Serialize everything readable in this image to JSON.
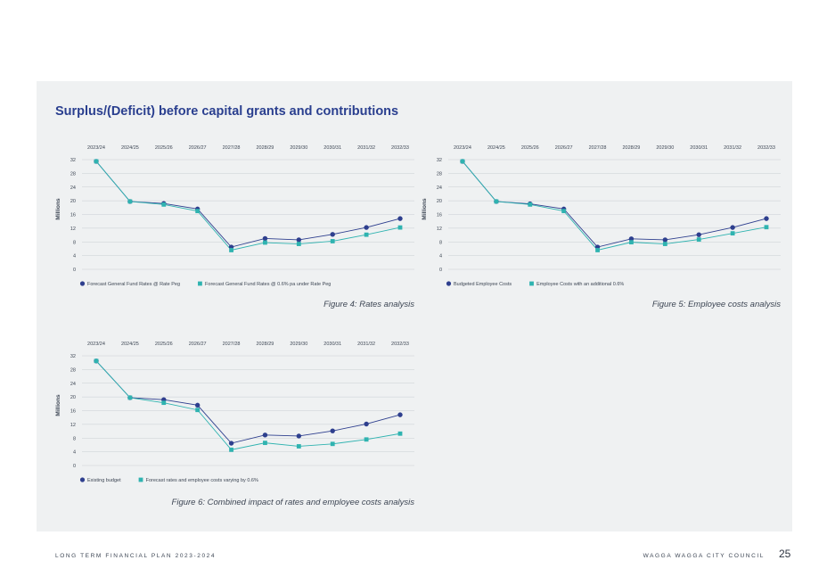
{
  "page": {
    "title": "Surplus/(Deficit) before capital grants and contributions",
    "footer_left": "LONG TERM FINANCIAL PLAN 2023-2024",
    "footer_right": "WAGGA WAGGA CITY COUNCIL",
    "page_number": "25"
  },
  "colors": {
    "series_a": "#2e3f8e",
    "series_b": "#2fb3b0",
    "grid": "#c9ced3",
    "text": "#3d4654"
  },
  "chart_data": [
    {
      "type": "line",
      "caption": "Figure 4: Rates analysis",
      "ylabel": "Millions",
      "xlabel": "",
      "x": [
        "2023/24",
        "2024/25",
        "2025/26",
        "2026/27",
        "2027/28",
        "2028/29",
        "2029/30",
        "2030/31",
        "2031/32",
        "2032/33"
      ],
      "y_ticks": [
        "0",
        "4",
        "8",
        "12",
        "16",
        "20",
        "24",
        "28",
        "32"
      ],
      "ylim": [
        0,
        32
      ],
      "grid": true,
      "legend_position": "bottom-left",
      "x_axis_position": "top",
      "series": [
        {
          "name": "Forecast General Fund Rates @ Rate Peg",
          "marker": "circle",
          "color": "#2e3f8e",
          "values": [
            31.5,
            19.8,
            19.2,
            17.6,
            6.5,
            9.0,
            8.6,
            10.2,
            12.2,
            14.8
          ]
        },
        {
          "name": "Forecast General Fund Rates @ 0.6% pa under Rate Peg",
          "marker": "square",
          "color": "#2fb3b0",
          "values": [
            31.5,
            19.8,
            18.9,
            17.0,
            5.6,
            7.8,
            7.4,
            8.2,
            10.1,
            12.2
          ]
        }
      ]
    },
    {
      "type": "line",
      "caption": "Figure 5: Employee costs analysis",
      "ylabel": "Millions",
      "xlabel": "",
      "x": [
        "2023/24",
        "2024/25",
        "2025/26",
        "2026/27",
        "2027/28",
        "2028/29",
        "2029/30",
        "2030/31",
        "2031/32",
        "2032/33"
      ],
      "y_ticks": [
        "0",
        "4",
        "8",
        "12",
        "16",
        "20",
        "24",
        "28",
        "32"
      ],
      "ylim": [
        0,
        32
      ],
      "grid": true,
      "legend_position": "bottom-left",
      "x_axis_position": "top",
      "series": [
        {
          "name": "Budgeted Employee Costs",
          "marker": "circle",
          "color": "#2e3f8e",
          "values": [
            31.5,
            19.8,
            19.1,
            17.6,
            6.5,
            8.9,
            8.6,
            10.1,
            12.2,
            14.8
          ]
        },
        {
          "name": "Employee Costs with an additional 0.6%",
          "marker": "square",
          "color": "#2fb3b0",
          "values": [
            31.5,
            19.8,
            18.9,
            17.0,
            5.6,
            7.9,
            7.4,
            8.7,
            10.5,
            12.3
          ]
        }
      ]
    },
    {
      "type": "line",
      "caption": "Figure 6: Combined impact of rates and employee costs analysis",
      "ylabel": "Millions",
      "xlabel": "",
      "x": [
        "2023/24",
        "2024/25",
        "2025/26",
        "2026/27",
        "2027/28",
        "2028/29",
        "2029/30",
        "2030/31",
        "2031/32",
        "2032/33"
      ],
      "y_ticks": [
        "0",
        "4",
        "8",
        "12",
        "16",
        "20",
        "24",
        "28",
        "32"
      ],
      "ylim": [
        0,
        32
      ],
      "grid": true,
      "legend_position": "bottom-left",
      "x_axis_position": "top",
      "series": [
        {
          "name": "Existing budget",
          "marker": "circle",
          "color": "#2e3f8e",
          "values": [
            30.5,
            19.8,
            19.2,
            17.6,
            6.5,
            8.9,
            8.6,
            10.1,
            12.1,
            14.8
          ]
        },
        {
          "name": "Forecast rates and employee costs varying by 0.6%",
          "marker": "square",
          "color": "#2fb3b0",
          "values": [
            30.5,
            19.8,
            18.3,
            16.2,
            4.6,
            6.6,
            5.6,
            6.3,
            7.6,
            9.3
          ]
        }
      ]
    }
  ]
}
